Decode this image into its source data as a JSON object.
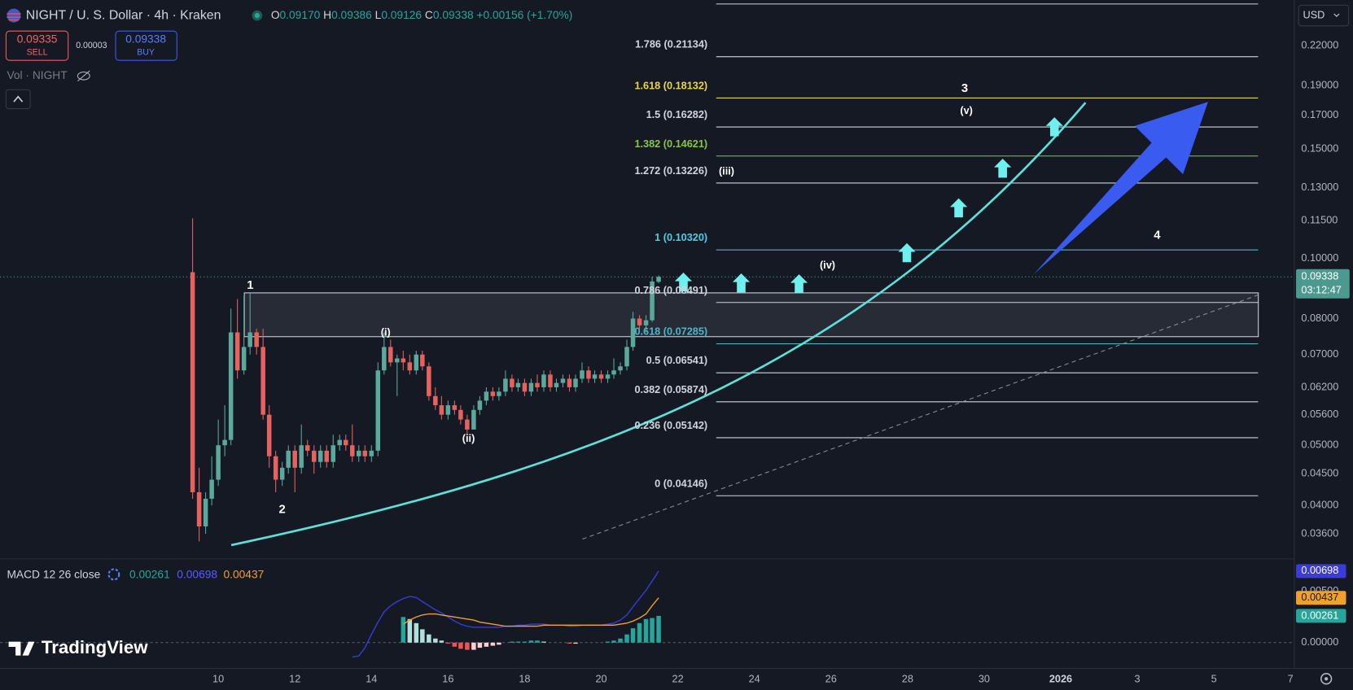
{
  "symbol": "NIGHT / U. S. Dollar · 4h · Kraken",
  "legend": [
    {
      "key": "O",
      "value": "0.09170"
    },
    {
      "key": "H",
      "value": "0.09386"
    },
    {
      "key": "L",
      "value": "0.09126"
    },
    {
      "key": "C",
      "value": "0.09338"
    }
  ],
  "change": "+0.00156 (+1.70%)",
  "sell": {
    "price": "0.09335",
    "label": "SELL"
  },
  "spread": "0.00003",
  "buy": {
    "price": "0.09338",
    "label": "BUY"
  },
  "volume": "Vol · NIGHT",
  "currency": "USD",
  "countdown": "03:12:47",
  "brand": "TradingView",
  "chart_data": [
    {
      "type": "candlestick",
      "log_scale": true,
      "up_color": "#5ba89d",
      "down_color": "#e5625f",
      "x": [
        9.33,
        9.5,
        9.67,
        9.83,
        10,
        10.17,
        10.33,
        10.5,
        10.67,
        10.83,
        11,
        11.17,
        11.33,
        11.5,
        11.67,
        11.83,
        12,
        12.17,
        12.33,
        12.5,
        12.67,
        12.83,
        13,
        13.17,
        13.33,
        13.5,
        13.67,
        13.83,
        14,
        14.17,
        14.33,
        14.5,
        14.67,
        14.83,
        15,
        15.17,
        15.33,
        15.5,
        15.67,
        15.83,
        16,
        16.17,
        16.33,
        16.5,
        16.67,
        16.83,
        17,
        17.17,
        17.33,
        17.5,
        17.67,
        17.83,
        18,
        18.17,
        18.33,
        18.5,
        18.67,
        18.83,
        19,
        19.17,
        19.33,
        19.5,
        19.67,
        19.83,
        20,
        20.17,
        20.33,
        20.5,
        20.67,
        20.83,
        21,
        21.17,
        21.33,
        21.5
      ],
      "open": [
        0.095,
        0.042,
        0.037,
        0.041,
        0.044,
        0.05,
        0.051,
        0.076,
        0.066,
        0.072,
        0.076,
        0.072,
        0.056,
        0.048,
        0.044,
        0.046,
        0.049,
        0.046,
        0.05,
        0.049,
        0.047,
        0.049,
        0.047,
        0.05,
        0.051,
        0.05,
        0.048,
        0.049,
        0.048,
        0.049,
        0.066,
        0.072,
        0.068,
        0.069,
        0.068,
        0.066,
        0.07,
        0.067,
        0.06,
        0.058,
        0.056,
        0.058,
        0.057,
        0.055,
        0.053,
        0.057,
        0.059,
        0.061,
        0.06,
        0.061,
        0.064,
        0.062,
        0.063,
        0.061,
        0.063,
        0.062,
        0.065,
        0.062,
        0.063,
        0.064,
        0.062,
        0.064,
        0.066,
        0.064,
        0.065,
        0.064,
        0.065,
        0.066,
        0.067,
        0.072,
        0.08,
        0.078,
        0.0795,
        0.0917
      ],
      "high": [
        0.116,
        0.046,
        0.042,
        0.048,
        0.055,
        0.058,
        0.083,
        0.086,
        0.087,
        0.088,
        0.077,
        0.077,
        0.058,
        0.049,
        0.047,
        0.05,
        0.05,
        0.054,
        0.051,
        0.05,
        0.05,
        0.05,
        0.052,
        0.052,
        0.052,
        0.054,
        0.05,
        0.05,
        0.05,
        0.068,
        0.076,
        0.074,
        0.07,
        0.071,
        0.07,
        0.071,
        0.071,
        0.068,
        0.062,
        0.06,
        0.059,
        0.059,
        0.058,
        0.056,
        0.058,
        0.06,
        0.062,
        0.062,
        0.062,
        0.066,
        0.065,
        0.064,
        0.064,
        0.064,
        0.065,
        0.066,
        0.066,
        0.064,
        0.065,
        0.065,
        0.065,
        0.068,
        0.067,
        0.066,
        0.066,
        0.066,
        0.069,
        0.068,
        0.074,
        0.082,
        0.081,
        0.081,
        0.0935,
        0.09386
      ],
      "low": [
        0.041,
        0.035,
        0.036,
        0.04,
        0.043,
        0.048,
        0.05,
        0.064,
        0.065,
        0.07,
        0.07,
        0.055,
        0.046,
        0.042,
        0.043,
        0.045,
        0.042,
        0.045,
        0.048,
        0.045,
        0.046,
        0.046,
        0.046,
        0.049,
        0.049,
        0.047,
        0.047,
        0.047,
        0.047,
        0.048,
        0.065,
        0.067,
        0.06,
        0.066,
        0.065,
        0.065,
        0.066,
        0.059,
        0.057,
        0.055,
        0.055,
        0.056,
        0.054,
        0.052,
        0.053,
        0.056,
        0.058,
        0.059,
        0.059,
        0.06,
        0.061,
        0.061,
        0.06,
        0.06,
        0.061,
        0.061,
        0.061,
        0.061,
        0.062,
        0.061,
        0.061,
        0.063,
        0.063,
        0.063,
        0.063,
        0.063,
        0.064,
        0.065,
        0.066,
        0.071,
        0.077,
        0.076,
        0.079,
        0.09126
      ],
      "close": [
        0.042,
        0.037,
        0.041,
        0.044,
        0.05,
        0.051,
        0.076,
        0.066,
        0.072,
        0.076,
        0.072,
        0.056,
        0.048,
        0.044,
        0.046,
        0.049,
        0.046,
        0.05,
        0.049,
        0.047,
        0.049,
        0.047,
        0.05,
        0.051,
        0.05,
        0.048,
        0.049,
        0.048,
        0.049,
        0.066,
        0.072,
        0.068,
        0.069,
        0.068,
        0.066,
        0.07,
        0.067,
        0.06,
        0.058,
        0.056,
        0.058,
        0.057,
        0.055,
        0.053,
        0.057,
        0.059,
        0.061,
        0.06,
        0.061,
        0.064,
        0.062,
        0.063,
        0.061,
        0.063,
        0.062,
        0.065,
        0.062,
        0.063,
        0.064,
        0.062,
        0.064,
        0.066,
        0.064,
        0.065,
        0.064,
        0.065,
        0.066,
        0.067,
        0.072,
        0.08,
        0.078,
        0.0795,
        0.0918,
        0.09338
      ],
      "xlim": [
        4.3,
        38.1
      ],
      "xticks": [
        10,
        12,
        14,
        16,
        18,
        20,
        22,
        24,
        26,
        28,
        30,
        {
          "value": 32,
          "label": "2026"
        },
        {
          "value": 34,
          "label": "3"
        },
        {
          "value": 36,
          "label": "5"
        },
        {
          "value": 38,
          "label": "7"
        }
      ],
      "ylim": [
        0.0328,
        0.2608
      ],
      "yticks": [
        {
          "value": 0.22,
          "label": "0.22000"
        },
        {
          "value": 0.19,
          "label": "0.19000"
        },
        {
          "value": 0.17,
          "label": "0.17000"
        },
        {
          "value": 0.15,
          "label": "0.15000"
        },
        {
          "value": 0.13,
          "label": "0.13000"
        },
        {
          "value": 0.115,
          "label": "0.11500"
        },
        {
          "value": 0.1,
          "label": "0.10000"
        },
        {
          "value": 0.08,
          "label": "0.08000"
        },
        {
          "value": 0.07,
          "label": "0.07000"
        },
        {
          "value": 0.062,
          "label": "0.06200"
        },
        {
          "value": 0.056,
          "label": "0.05600"
        },
        {
          "value": 0.05,
          "label": "0.05000"
        },
        {
          "value": 0.045,
          "label": "0.04500"
        },
        {
          "value": 0.04,
          "label": "0.04000"
        },
        {
          "value": 0.036,
          "label": "0.03600"
        }
      ],
      "fib_levels": [
        {
          "label": "0 (0.04146)",
          "price": 0.04146,
          "color": "#d1d4dc"
        },
        {
          "label": "0.236 (0.05142)",
          "price": 0.05142,
          "color": "#d1d4dc"
        },
        {
          "label": "0.382 (0.05874)",
          "price": 0.05874,
          "color": "#d1d4dc"
        },
        {
          "label": "0.5 (0.06541)",
          "price": 0.06541,
          "color": "#d1d4dc"
        },
        {
          "label": "0.618 (0.07285)",
          "price": 0.07285,
          "color": "#4bb5c9"
        },
        {
          "label": "0.786 (0.08491)",
          "price": 0.08491,
          "color": "#d1d4dc"
        },
        {
          "label": "1 (0.10320)",
          "price": 0.1032,
          "color": "#4dd0e1"
        },
        {
          "label": "1.272 (0.13226)",
          "price": 0.13226,
          "color": "#d1d4dc"
        },
        {
          "label": "1.382 (0.14621)",
          "price": 0.14621,
          "color": "#8bc34a"
        },
        {
          "label": "1.5 (0.16282)",
          "price": 0.16282,
          "color": "#d1d4dc"
        },
        {
          "label": "1.618 (0.18132)",
          "price": 0.18132,
          "color": "#e8d44d"
        },
        {
          "label": "1.786 (0.21134)",
          "price": 0.21134,
          "color": "#d1d4dc"
        },
        {
          "price": 0.257,
          "color": "#d1d4dc"
        }
      ],
      "zone": {
        "start": 10.68,
        "end": 37.16,
        "low": 0.0748,
        "high": 0.088
      },
      "annotations": [
        "1",
        "2",
        "(i)",
        "(ii)",
        "(iii)",
        "(iv)",
        "(v)",
        "3",
        "4"
      ]
    },
    {
      "type": "macd",
      "title": "MACD 12 26 close",
      "x": [
        13.5,
        13.67,
        13.83,
        14,
        14.17,
        14.33,
        14.5,
        14.67,
        14.83,
        15,
        15.17,
        15.33,
        15.5,
        15.67,
        15.83,
        16,
        16.17,
        16.33,
        16.5,
        16.67,
        16.83,
        17,
        17.17,
        17.33,
        17.5,
        17.67,
        17.83,
        18,
        18.17,
        18.33,
        18.5,
        18.67,
        18.83,
        19,
        19.17,
        19.33,
        19.5,
        19.67,
        19.83,
        20,
        20.17,
        20.33,
        20.5,
        20.67,
        20.83,
        21,
        21.17,
        21.33,
        21.5
      ],
      "macd": [
        -0.0014,
        -0.0013,
        -0.0005,
        0.0008,
        0.002,
        0.003,
        0.0036,
        0.004,
        0.0043,
        0.0045,
        0.0044,
        0.004,
        0.0036,
        0.0032,
        0.0029,
        0.0025,
        0.0021,
        0.0018,
        0.0016,
        0.0015,
        0.0015,
        0.0015,
        0.0015,
        0.0015,
        0.0016,
        0.0016,
        0.0017,
        0.0017,
        0.0018,
        0.0018,
        0.0018,
        0.0017,
        0.0017,
        0.0017,
        0.0016,
        0.0016,
        0.0017,
        0.0017,
        0.0017,
        0.0017,
        0.0018,
        0.0019,
        0.0022,
        0.0027,
        0.0035,
        0.0043,
        0.0051,
        0.006,
        0.00698
      ],
      "signal": [
        null,
        null,
        null,
        null,
        null,
        null,
        null,
        null,
        0.0018,
        0.0022,
        0.0025,
        0.0027,
        0.0028,
        0.0028,
        0.0027,
        0.0026,
        0.0025,
        0.0024,
        0.0023,
        0.0022,
        0.002,
        0.0019,
        0.0018,
        0.0017,
        0.0016,
        0.0016,
        0.0016,
        0.0016,
        0.0016,
        0.0016,
        0.0017,
        0.0017,
        0.0017,
        0.0017,
        0.0017,
        0.0017,
        0.0017,
        0.0017,
        0.0017,
        0.0017,
        0.0017,
        0.0017,
        0.0018,
        0.0019,
        0.0021,
        0.0024,
        0.0028,
        0.0036,
        0.00437
      ],
      "histogram": [
        null,
        null,
        null,
        null,
        null,
        null,
        null,
        null,
        0.0025,
        0.0023,
        0.0019,
        0.0013,
        0.0008,
        0.0004,
        0.0002,
        -0.0001,
        -0.0004,
        -0.0006,
        -0.0007,
        -0.0007,
        -0.0005,
        -0.0004,
        -0.0003,
        -0.0002,
        0,
        0.0001,
        0.0001,
        0.0001,
        0.0002,
        0.0002,
        0.0001,
        0,
        0,
        0,
        -0.0001,
        -0.0001,
        0,
        0,
        0,
        0,
        0.0001,
        0.0002,
        0.0004,
        0.0008,
        0.0014,
        0.0019,
        0.0023,
        0.0024,
        0.00261
      ],
      "macd_color": "#3b3bd6",
      "signal_color": "#f0a030",
      "histogram_colors": [
        "#26a69a",
        "#b2dfdb",
        "#ef5350",
        "#ffcdd2"
      ],
      "ylim": [
        -0.0026,
        0.008
      ],
      "yticks": [
        {
          "value": 0,
          "label": "0.00000"
        },
        {
          "value": 0.005,
          "label": "0.00500"
        }
      ]
    }
  ]
}
